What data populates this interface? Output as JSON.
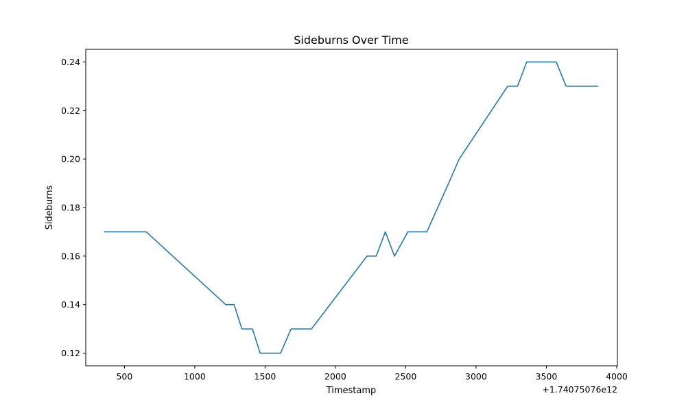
{
  "chart_data": {
    "type": "line",
    "title": "Sideburns Over Time",
    "xlabel": "Timestamp",
    "ylabel": "Sideburns",
    "x_offset_label": "+1.74075076e12",
    "xlim": [
      225,
      4005
    ],
    "ylim": [
      0.1148,
      0.2452
    ],
    "xticks": [
      500,
      1000,
      1500,
      2000,
      2500,
      3000,
      3500,
      4000
    ],
    "xtick_labels": [
      "500",
      "1000",
      "1500",
      "2000",
      "2500",
      "3000",
      "3500",
      "4000"
    ],
    "yticks": [
      0.12,
      0.14,
      0.16,
      0.18,
      0.2,
      0.22,
      0.24
    ],
    "ytick_labels": [
      "0.12",
      "0.14",
      "0.16",
      "0.18",
      "0.20",
      "0.22",
      "0.24"
    ],
    "grid": false,
    "series": [
      {
        "color": "#1f77b4",
        "x": [
          355,
          655,
          1220,
          1280,
          1335,
          1410,
          1465,
          1610,
          1685,
          1830,
          2225,
          2290,
          2355,
          2420,
          2515,
          2650,
          2805,
          2880,
          3225,
          3295,
          3360,
          3570,
          3640,
          3870
        ],
        "y": [
          0.17,
          0.17,
          0.14,
          0.14,
          0.13,
          0.13,
          0.12,
          0.12,
          0.13,
          0.13,
          0.16,
          0.16,
          0.17,
          0.16,
          0.17,
          0.17,
          0.19,
          0.2,
          0.23,
          0.23,
          0.24,
          0.24,
          0.23,
          0.23
        ]
      }
    ]
  }
}
